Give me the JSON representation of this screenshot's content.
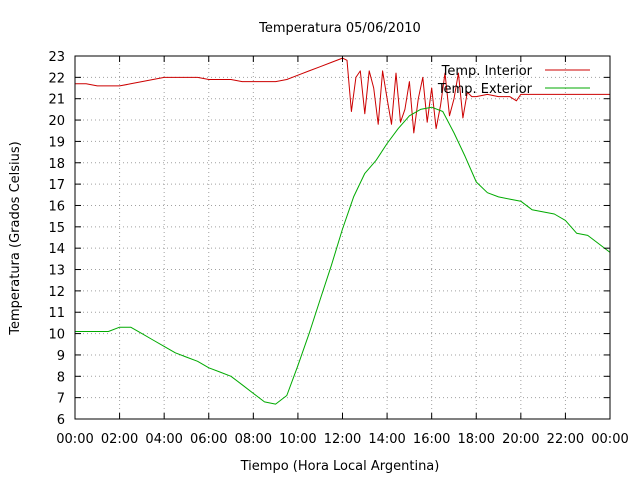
{
  "chart_data": {
    "type": "line",
    "title": "Temperatura 05/06/2010",
    "xlabel": "Tiempo (Hora Local Argentina)",
    "ylabel": "Temperatura (Grados Celsius)",
    "xlim": [
      0,
      24
    ],
    "ylim": [
      6,
      23
    ],
    "x_ticks": [
      "00:00",
      "02:00",
      "04:00",
      "06:00",
      "08:00",
      "10:00",
      "12:00",
      "14:00",
      "16:00",
      "18:00",
      "20:00",
      "22:00",
      "00:00"
    ],
    "y_ticks": [
      6,
      7,
      8,
      9,
      10,
      11,
      12,
      13,
      14,
      15,
      16,
      17,
      18,
      19,
      20,
      21,
      22,
      23
    ],
    "grid": true,
    "legend_position": "top-right",
    "series": [
      {
        "name": "Temp. Interior",
        "color": "#cc0000",
        "x": [
          0,
          0.5,
          1,
          1.5,
          2,
          2.5,
          3,
          3.5,
          4,
          4.5,
          5,
          5.5,
          6,
          6.5,
          7,
          7.5,
          8,
          8.5,
          9,
          9.5,
          10,
          10.5,
          11,
          11.5,
          12,
          12.2,
          12.4,
          12.6,
          12.8,
          13,
          13.2,
          13.4,
          13.6,
          13.8,
          14,
          14.2,
          14.4,
          14.6,
          14.8,
          15,
          15.2,
          15.4,
          15.6,
          15.8,
          16,
          16.2,
          16.4,
          16.6,
          16.8,
          17,
          17.2,
          17.4,
          17.6,
          17.8,
          18,
          18.5,
          19,
          19.5,
          19.8,
          20,
          20.5,
          21,
          21.5,
          22,
          22.5,
          23,
          23.5,
          24
        ],
        "y": [
          21.7,
          21.7,
          21.6,
          21.6,
          21.6,
          21.7,
          21.8,
          21.9,
          22.0,
          22.0,
          22.0,
          22.0,
          21.9,
          21.9,
          21.9,
          21.8,
          21.8,
          21.8,
          21.8,
          21.9,
          22.1,
          22.3,
          22.5,
          22.7,
          22.9,
          22.8,
          20.4,
          22.0,
          22.3,
          20.3,
          22.3,
          21.5,
          19.8,
          22.3,
          21.0,
          19.8,
          22.2,
          19.9,
          20.5,
          21.8,
          19.4,
          21.0,
          22.0,
          19.9,
          21.5,
          19.6,
          20.7,
          22.2,
          20.2,
          21.0,
          22.2,
          20.1,
          21.3,
          21.1,
          21.1,
          21.2,
          21.1,
          21.1,
          20.9,
          21.2,
          21.2,
          21.2,
          21.2,
          21.2,
          21.2,
          21.2,
          21.2,
          21.2
        ]
      },
      {
        "name": "Temp. Exterior",
        "color": "#00aa00",
        "x": [
          0,
          0.5,
          1,
          1.5,
          2,
          2.5,
          3,
          3.5,
          4,
          4.5,
          5,
          5.5,
          6,
          6.5,
          7,
          7.5,
          8,
          8.5,
          9,
          9.5,
          10,
          10.5,
          11,
          11.5,
          12,
          12.5,
          13,
          13.5,
          14,
          14.5,
          15,
          15.5,
          16,
          16.5,
          17,
          17.5,
          18,
          18.5,
          19,
          19.5,
          20,
          20.5,
          21,
          21.5,
          22,
          22.5,
          23,
          23.5,
          24
        ],
        "y": [
          10.1,
          10.1,
          10.1,
          10.1,
          10.3,
          10.3,
          10.0,
          9.7,
          9.4,
          9.1,
          8.9,
          8.7,
          8.4,
          8.2,
          8.0,
          7.6,
          7.2,
          6.8,
          6.7,
          7.1,
          8.5,
          10.0,
          11.6,
          13.2,
          14.9,
          16.4,
          17.5,
          18.1,
          18.9,
          19.6,
          20.2,
          20.5,
          20.6,
          20.4,
          19.4,
          18.3,
          17.1,
          16.6,
          16.4,
          16.3,
          16.2,
          15.8,
          15.7,
          15.6,
          15.3,
          14.7,
          14.6,
          14.2,
          13.8
        ]
      }
    ]
  }
}
